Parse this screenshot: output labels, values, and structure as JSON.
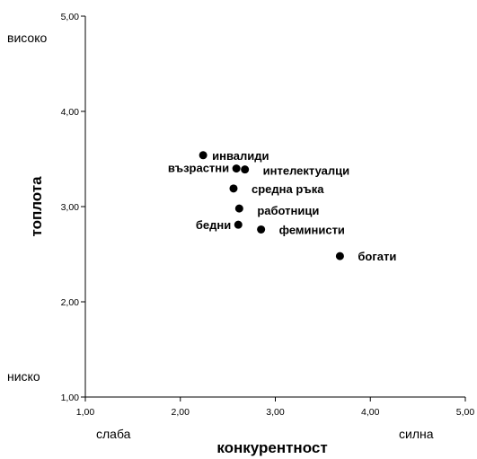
{
  "chart_data": {
    "type": "scatter",
    "xlabel": "конкурентност",
    "ylabel": "топлота",
    "xlim": [
      1,
      5
    ],
    "ylim": [
      1,
      5
    ],
    "x_ticks": [
      1,
      2,
      3,
      4,
      5
    ],
    "y_ticks": [
      1,
      2,
      3,
      4,
      5
    ],
    "x_tick_labels": [
      "1,00",
      "2,00",
      "3,00",
      "4,00",
      "5,00"
    ],
    "y_tick_labels": [
      "1,00",
      "2,00",
      "3,00",
      "4,00",
      "5,00"
    ],
    "axis_annotations": {
      "y_high": "високо",
      "y_low": "ниско",
      "x_low": "слаба",
      "x_high": "силна"
    },
    "grid": false,
    "points": [
      {
        "label": "инвалиди",
        "x": 2.24,
        "y": 3.54
      },
      {
        "label": "възрастни",
        "x": 2.59,
        "y": 3.4
      },
      {
        "label": "интелектуалци",
        "x": 2.68,
        "y": 3.39
      },
      {
        "label": "средна ръка",
        "x": 2.56,
        "y": 3.19
      },
      {
        "label": "работници",
        "x": 2.62,
        "y": 2.98
      },
      {
        "label": "бедни",
        "x": 2.61,
        "y": 2.81
      },
      {
        "label": "феминисти",
        "x": 2.85,
        "y": 2.76
      },
      {
        "label": "богати",
        "x": 3.68,
        "y": 2.48
      }
    ]
  }
}
